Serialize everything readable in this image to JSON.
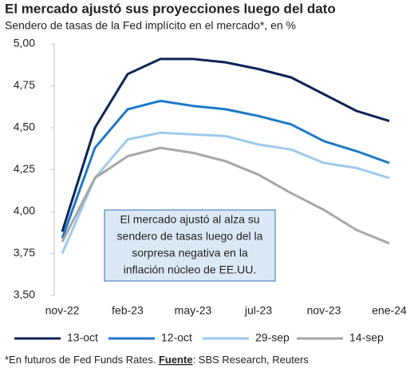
{
  "chart_data": {
    "type": "line",
    "title": "El mercado ajustó sus proyecciones luego del dato",
    "subtitle": "Sendero de tasas de la Fed implícito en el mercado*, en %",
    "categories": [
      "nov-22",
      null,
      "feb-23",
      null,
      "may-23",
      null,
      "jul-23",
      null,
      "nov-23",
      null,
      "ene-24"
    ],
    "series": [
      {
        "name": "13-oct",
        "color": "#0d2456",
        "values": [
          3.88,
          4.5,
          4.82,
          4.91,
          4.91,
          4.89,
          4.85,
          4.8,
          4.7,
          4.6,
          4.54
        ]
      },
      {
        "name": "12-oct",
        "color": "#1f78c8",
        "values": [
          3.84,
          4.38,
          4.61,
          4.66,
          4.63,
          4.61,
          4.57,
          4.52,
          4.42,
          4.36,
          4.29
        ]
      },
      {
        "name": "29-sep",
        "color": "#9ec9ee",
        "values": [
          3.75,
          4.2,
          4.43,
          4.47,
          4.46,
          4.45,
          4.4,
          4.37,
          4.29,
          4.26,
          4.2
        ]
      },
      {
        "name": "14-sep",
        "color": "#a6a6a6",
        "values": [
          3.82,
          4.2,
          4.33,
          4.38,
          4.35,
          4.3,
          4.22,
          4.11,
          4.01,
          3.89,
          3.81
        ]
      }
    ],
    "ylim": [
      3.5,
      5.0
    ],
    "yticks": [
      {
        "value": 3.5,
        "label": "3,50"
      },
      {
        "value": 3.75,
        "label": "3,75"
      },
      {
        "value": 4.0,
        "label": "4,00"
      },
      {
        "value": 4.25,
        "label": "4,25"
      },
      {
        "value": 4.5,
        "label": "4,50"
      },
      {
        "value": 4.75,
        "label": "4,75"
      },
      {
        "value": 5.0,
        "label": "5,00"
      }
    ],
    "annotation": [
      "El mercado ajustó al alza su",
      "sendero de tasas luego del la",
      "sorpresa negativa en la",
      "inflación núcleo de EE.UU."
    ],
    "footnote": {
      "text": "*En futuros de Fed Funds Rates. ",
      "source_label": "Fuente",
      "source": ": SBS Research, Reuters"
    }
  }
}
